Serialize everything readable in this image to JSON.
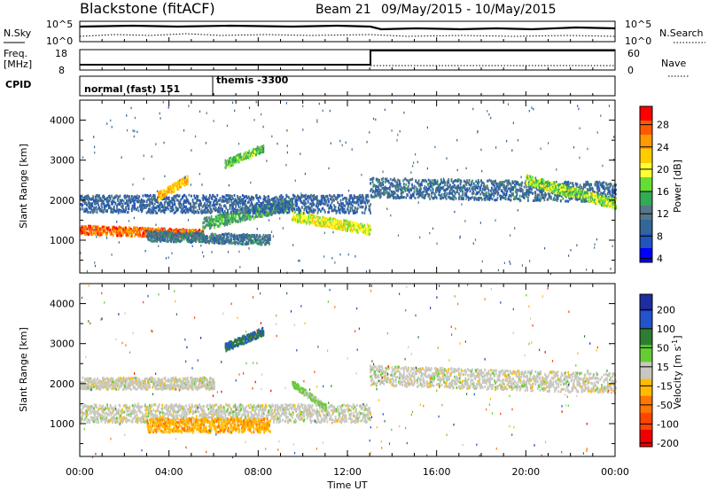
{
  "header": {
    "title": "Blackstone (fitACF)",
    "beam": "Beam 21",
    "date_range": "09/May/2015 - 10/May/2015"
  },
  "top_panels": {
    "sky_label": "N.Sky",
    "search_label": "N.Search",
    "freq_label": "Freq.",
    "freq_unit": "[MHz]",
    "nave_label": "Nave",
    "cpid_label": "CPID",
    "sky_ticks": [
      "10^5",
      "10^0"
    ],
    "search_ticks": [
      "10^5",
      "10^0"
    ],
    "freq_ticks": [
      "18",
      "8"
    ],
    "nave_ticks": [
      "60",
      "0"
    ],
    "cpid_segments": [
      {
        "label": "normal (fast) 151",
        "start_hour": 0,
        "end_hour": 6
      },
      {
        "label": "themis -3300",
        "start_hour": 6,
        "end_hour": 24
      }
    ]
  },
  "power_colorbar": {
    "label": "Power [dB]",
    "ticks": [
      "28",
      "24",
      "20",
      "16",
      "12",
      "8",
      "4"
    ],
    "colors": [
      "#ff0000",
      "#ff5a00",
      "#ff9a00",
      "#ffcc00",
      "#ffff33",
      "#66dd33",
      "#33aa55",
      "#557788",
      "#336699",
      "#2255bb",
      "#0000ff"
    ]
  },
  "velocity_colorbar": {
    "label_prefix": "Velocity [m s",
    "label_suffix": "]",
    "superscript": "-1",
    "ticks": [
      "200",
      "100",
      "50",
      "15",
      "-15",
      "-50",
      "-100",
      "-200"
    ],
    "colors": [
      "#1e2ea0",
      "#2255cc",
      "#2e7d32",
      "#66cc33",
      "#c8c8c0",
      "#ffbb00",
      "#ff7700",
      "#ff4400",
      "#ee0000"
    ]
  },
  "x_axis": {
    "label": "Time UT",
    "ticks": [
      "00:00",
      "04:00",
      "08:00",
      "12:00",
      "16:00",
      "20:00",
      "00:00"
    ]
  },
  "y_axis": {
    "label": "Slant Range [km]",
    "ticks": [
      "1000",
      "2000",
      "3000",
      "4000"
    ]
  },
  "chart_data": [
    {
      "type": "heatmap",
      "title": "Power [dB]",
      "xlabel": "Time UT",
      "ylabel": "Slant Range [km]",
      "xlim_hours": [
        0,
        24
      ],
      "ylim_km": [
        180,
        4500
      ],
      "clim_db": [
        0,
        30
      ],
      "bands": [
        {
          "start_hour": 0.0,
          "end_hour": 5.5,
          "range_start_km": 1250,
          "range_end_km": 1150,
          "width_km": 220,
          "power_db": 26
        },
        {
          "start_hour": 5.5,
          "end_hour": 9.5,
          "range_start_km": 1400,
          "range_end_km": 1900,
          "width_km": 300,
          "power_db": 12
        },
        {
          "start_hour": 9.5,
          "end_hour": 13.0,
          "range_start_km": 1600,
          "range_end_km": 1250,
          "width_km": 250,
          "power_db": 18
        },
        {
          "start_hour": 0.0,
          "end_hour": 13.0,
          "range_start_km": 1900,
          "range_end_km": 1900,
          "width_km": 450,
          "power_db": 6
        },
        {
          "start_hour": 3.0,
          "end_hour": 8.5,
          "range_start_km": 1100,
          "range_end_km": 1000,
          "width_km": 250,
          "power_db": 8
        },
        {
          "start_hour": 6.5,
          "end_hour": 8.2,
          "range_start_km": 2900,
          "range_end_km": 3300,
          "width_km": 200,
          "power_db": 14
        },
        {
          "start_hour": 3.5,
          "end_hour": 4.8,
          "range_start_km": 2100,
          "range_end_km": 2500,
          "width_km": 200,
          "power_db": 22
        },
        {
          "start_hour": 13.0,
          "end_hour": 24.0,
          "range_start_km": 2300,
          "range_end_km": 2200,
          "width_km": 500,
          "power_db": 7
        },
        {
          "start_hour": 20.0,
          "end_hour": 24.0,
          "range_start_km": 2500,
          "range_end_km": 1900,
          "width_km": 250,
          "power_db": 16
        }
      ]
    },
    {
      "type": "heatmap",
      "title": "Velocity [m s-1]",
      "xlabel": "Time UT",
      "ylabel": "Slant Range [km]",
      "xlim_hours": [
        0,
        24
      ],
      "ylim_km": [
        180,
        4500
      ],
      "clim_ms": [
        -200,
        200
      ],
      "bands": [
        {
          "start_hour": 0.0,
          "end_hour": 13.0,
          "range_start_km": 1250,
          "range_end_km": 1250,
          "width_km": 450,
          "velocity_ms": 0
        },
        {
          "start_hour": 3.0,
          "end_hour": 8.5,
          "range_start_km": 950,
          "range_end_km": 950,
          "width_km": 350,
          "velocity_ms": -60
        },
        {
          "start_hour": 9.5,
          "end_hour": 11.0,
          "range_start_km": 2000,
          "range_end_km": 1400,
          "width_km": 150,
          "velocity_ms": 40
        },
        {
          "start_hour": 6.5,
          "end_hour": 8.2,
          "range_start_km": 2900,
          "range_end_km": 3300,
          "width_km": 200,
          "velocity_ms": 120
        },
        {
          "start_hour": 13.0,
          "end_hour": 24.0,
          "range_start_km": 2200,
          "range_end_km": 2000,
          "width_km": 500,
          "velocity_ms": 0
        },
        {
          "start_hour": 0.0,
          "end_hour": 6.0,
          "range_start_km": 2000,
          "range_end_km": 2000,
          "width_km": 300,
          "velocity_ms": 0
        }
      ]
    }
  ]
}
